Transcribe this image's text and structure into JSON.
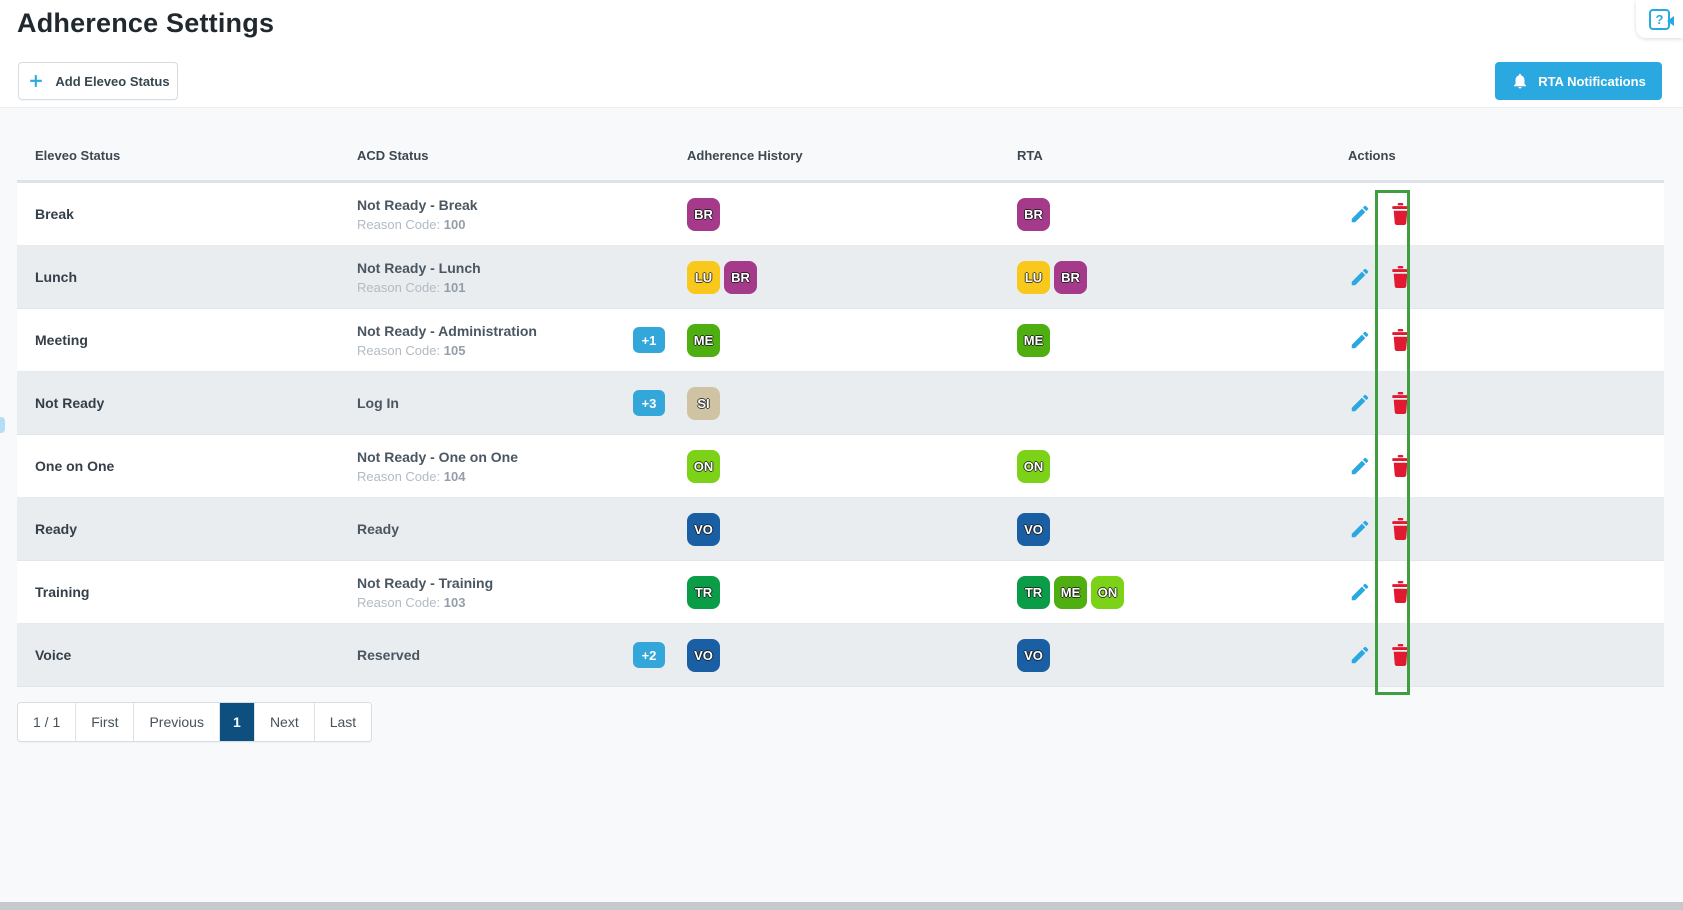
{
  "page": {
    "title": "Adherence Settings"
  },
  "toolbar": {
    "add_label": "Add Eleveo Status",
    "rta_label": "RTA Notifications"
  },
  "help": {
    "glyph": "?"
  },
  "table": {
    "headers": [
      "Eleveo Status",
      "ACD Status",
      "Adherence History",
      "RTA",
      "Actions"
    ],
    "reason_label": "Reason Code:",
    "rows": [
      {
        "eleveo_status": "Break",
        "acd_status": "Not Ready - Break",
        "reason_code": "100",
        "more_count": "",
        "adherence": [
          "BR"
        ],
        "rta": [
          "BR"
        ]
      },
      {
        "eleveo_status": "Lunch",
        "acd_status": "Not Ready - Lunch",
        "reason_code": "101",
        "more_count": "",
        "adherence": [
          "LU",
          "BR"
        ],
        "rta": [
          "LU",
          "BR"
        ]
      },
      {
        "eleveo_status": "Meeting",
        "acd_status": "Not Ready - Administration",
        "reason_code": "105",
        "more_count": "+1",
        "adherence": [
          "ME"
        ],
        "rta": [
          "ME"
        ]
      },
      {
        "eleveo_status": "Not Ready",
        "acd_status": "Log In",
        "reason_code": "",
        "more_count": "+3",
        "adherence": [
          "SI"
        ],
        "rta": []
      },
      {
        "eleveo_status": "One on One",
        "acd_status": "Not Ready - One on One",
        "reason_code": "104",
        "more_count": "",
        "adherence": [
          "ON"
        ],
        "rta": [
          "ON"
        ]
      },
      {
        "eleveo_status": "Ready",
        "acd_status": "Ready",
        "reason_code": "",
        "more_count": "",
        "adherence": [
          "VO"
        ],
        "rta": [
          "VO"
        ]
      },
      {
        "eleveo_status": "Training",
        "acd_status": "Not Ready - Training",
        "reason_code": "103",
        "more_count": "",
        "adherence": [
          "TR"
        ],
        "rta": [
          "TR",
          "ME",
          "ON"
        ]
      },
      {
        "eleveo_status": "Voice",
        "acd_status": "Reserved",
        "reason_code": "",
        "more_count": "+2",
        "adherence": [
          "VO"
        ],
        "rta": [
          "VO"
        ]
      }
    ]
  },
  "badge_colors": {
    "BR": "#a53a8b",
    "LU": "#f8c81c",
    "ME": "#4fae10",
    "SI": "#cfc3a3",
    "ON": "#7cd216",
    "VO": "#1a5fa3",
    "TR": "#0a9c47"
  },
  "colors": {
    "accent_blue": "#2aa9e0",
    "chip_blue": "#33a6da",
    "active_page_blue": "#0d4f7e",
    "delete_red": "#e11931",
    "annotation_green": "#3f9e42",
    "row_alt_bg": "#e9edf0"
  },
  "pagination": {
    "summary": "1 / 1",
    "first": "First",
    "previous": "Previous",
    "page": "1",
    "next": "Next",
    "last": "Last"
  }
}
